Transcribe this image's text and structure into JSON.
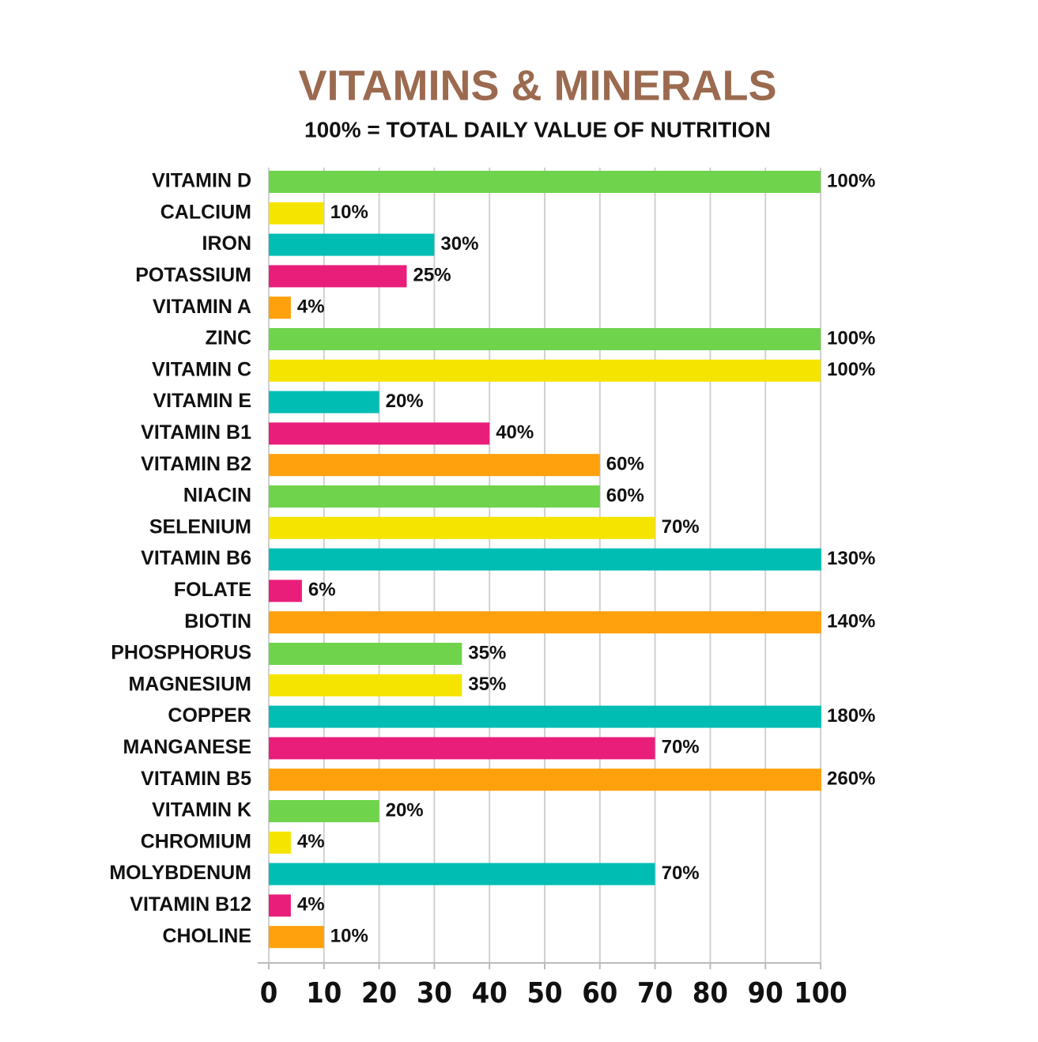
{
  "chart_data": {
    "type": "bar",
    "orientation": "horizontal",
    "title": "VITAMINS & MINERALS",
    "subtitle": "100% = TOTAL DAILY VALUE OF NUTRITION",
    "categories": [
      "VITAMIN D",
      "CALCIUM",
      "IRON",
      "POTASSIUM",
      "VITAMIN A",
      "ZINC",
      "VITAMIN C",
      "VITAMIN E",
      "VITAMIN B1",
      "VITAMIN B2",
      "NIACIN",
      "SELENIUM",
      "VITAMIN B6",
      "FOLATE",
      "BIOTIN",
      "PHOSPHORUS",
      "MAGNESIUM",
      "COPPER",
      "MANGANESE",
      "VITAMIN B5",
      "VITAMIN K",
      "CHROMIUM",
      "MOLYBDENUM",
      "VITAMIN B12",
      "CHOLINE"
    ],
    "values": [
      100,
      10,
      30,
      25,
      4,
      100,
      100,
      20,
      40,
      60,
      60,
      70,
      130,
      6,
      140,
      35,
      35,
      180,
      70,
      260,
      20,
      4,
      70,
      4,
      10
    ],
    "value_labels": [
      "100%",
      "10%",
      "30%",
      "25%",
      "4%",
      "100%",
      "100%",
      "20%",
      "40%",
      "60%",
      "60%",
      "70%",
      "130%",
      "6%",
      "140%",
      "35%",
      "35%",
      "180%",
      "70%",
      "260%",
      "20%",
      "4%",
      "70%",
      "4%",
      "10%"
    ],
    "colors": [
      "#6fd34b",
      "#f5e400",
      "#00bdb4",
      "#e91e7a",
      "#ffa10d",
      "#6fd34b",
      "#f5e400",
      "#00bdb4",
      "#e91e7a",
      "#ffa10d",
      "#6fd34b",
      "#f5e400",
      "#00bdb4",
      "#e91e7a",
      "#ffa10d",
      "#6fd34b",
      "#f5e400",
      "#00bdb4",
      "#e91e7a",
      "#ffa10d",
      "#6fd34b",
      "#f5e400",
      "#00bdb4",
      "#e91e7a",
      "#ffa10d"
    ],
    "xlim": [
      0,
      100
    ],
    "xticks": [
      0,
      10,
      20,
      30,
      40,
      50,
      60,
      70,
      80,
      90,
      100
    ],
    "grid": true
  }
}
